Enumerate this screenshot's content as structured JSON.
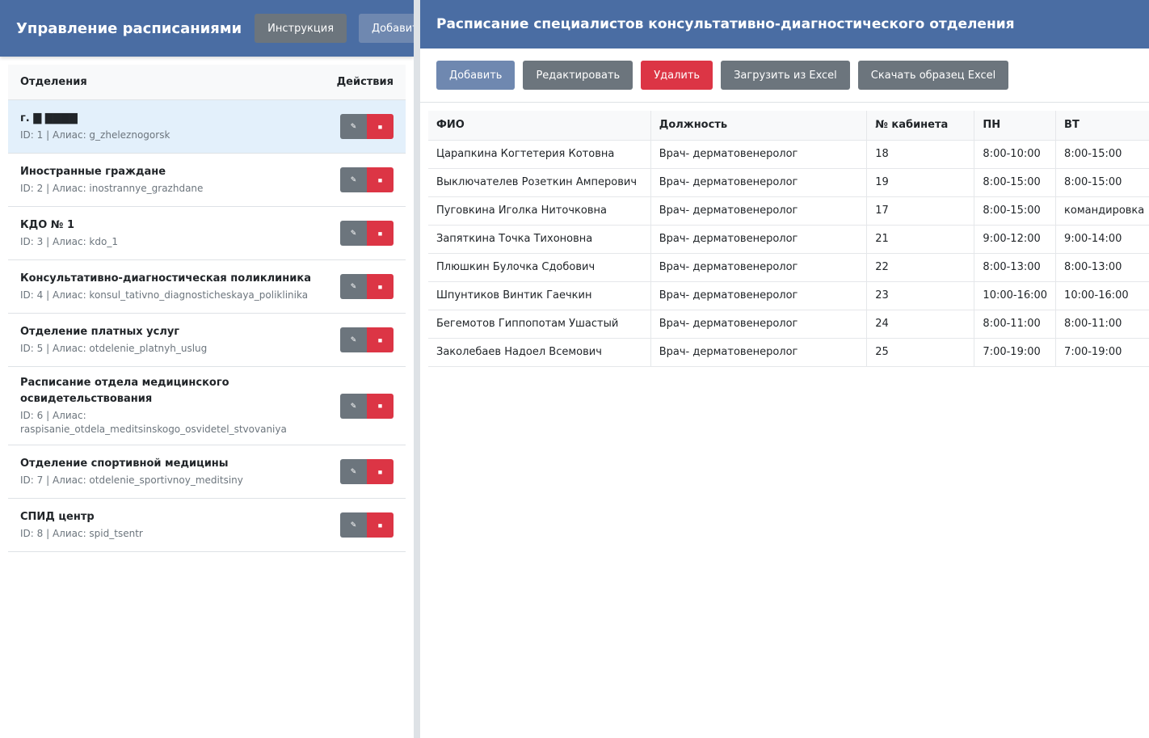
{
  "left": {
    "title": "Управление расписаниями",
    "instruction_label": "Инструкция",
    "add_label": "Добавить",
    "header": {
      "col_name": "Отделения",
      "col_actions": "Действия"
    },
    "departments": [
      {
        "name": "г. ▇ ▇▇▇▇",
        "meta": "ID: 1 | Алиас: g_zheleznogorsk"
      },
      {
        "name": "Иностранные граждане",
        "meta": "ID: 2 | Алиас: inostrannye_grazhdane"
      },
      {
        "name": "КДО № 1",
        "meta": "ID: 3 | Алиас: kdo_1"
      },
      {
        "name": "Консультативно-диагностическая поликлиника",
        "meta": "ID: 4 | Алиас: konsul_tativno_diagnosticheskaya_poliklinika"
      },
      {
        "name": "Отделение платных услуг",
        "meta": "ID: 5 | Алиас: otdelenie_platnyh_uslug"
      },
      {
        "name": "Расписание отдела медицинского освидетельствования",
        "meta": "ID: 6 | Алиас: raspisanie_otdela_meditsinskogo_osvidetel_stvovaniya"
      },
      {
        "name": "Отделение спортивной медицины",
        "meta": "ID: 7 | Алиас: otdelenie_sportivnoy_meditsiny"
      },
      {
        "name": "СПИД центр",
        "meta": "ID: 8 | Алиас: spid_tsentr"
      }
    ]
  },
  "right": {
    "title": "Расписание специалистов консультативно-диагностического отделения",
    "toolbar": {
      "add": "Добавить",
      "edit": "Редактировать",
      "delete": "Удалить",
      "upload": "Загрузить из Excel",
      "download": "Скачать образец Excel"
    },
    "columns": [
      "ФИО",
      "Должность",
      "№ кабинета",
      "ПН",
      "ВТ",
      ""
    ],
    "rows": [
      [
        "Царапкина Когтетерия Котовна",
        "Врач- дерматовенеролог",
        "18",
        "8:00-10:00",
        "8:00-15:00",
        ""
      ],
      [
        "Выключателев Розеткин Амперович",
        "Врач- дерматовенеролог",
        "19",
        "8:00-15:00",
        "8:00-15:00",
        ""
      ],
      [
        "Пуговкина Иголка Ниточковна",
        "Врач- дерматовенеролог",
        "17",
        "8:00-15:00",
        "командировка",
        ""
      ],
      [
        "Запяткина Точка Тихоновна",
        "Врач- дерматовенеролог",
        "21",
        "9:00-12:00",
        "9:00-14:00",
        ""
      ],
      [
        "Плюшкин Булочка Сдобович",
        "Врач- дерматовенеролог",
        "22",
        "8:00-13:00",
        "8:00-13:00",
        ""
      ],
      [
        "Шпунтиков Винтик Гаечкин",
        "Врач- дерматовенеролог",
        "23",
        "10:00-16:00",
        "10:00-16:00",
        ""
      ],
      [
        "Бегемотов Гиппопотам Ушастый",
        "Врач- дерматовенеролог",
        "24",
        "8:00-11:00",
        "8:00-11:00",
        ""
      ],
      [
        "Заколебаев Надоел Всемович",
        "Врач- дерматовенеролог",
        "25",
        "7:00-19:00",
        "7:00-19:00",
        ""
      ]
    ]
  }
}
